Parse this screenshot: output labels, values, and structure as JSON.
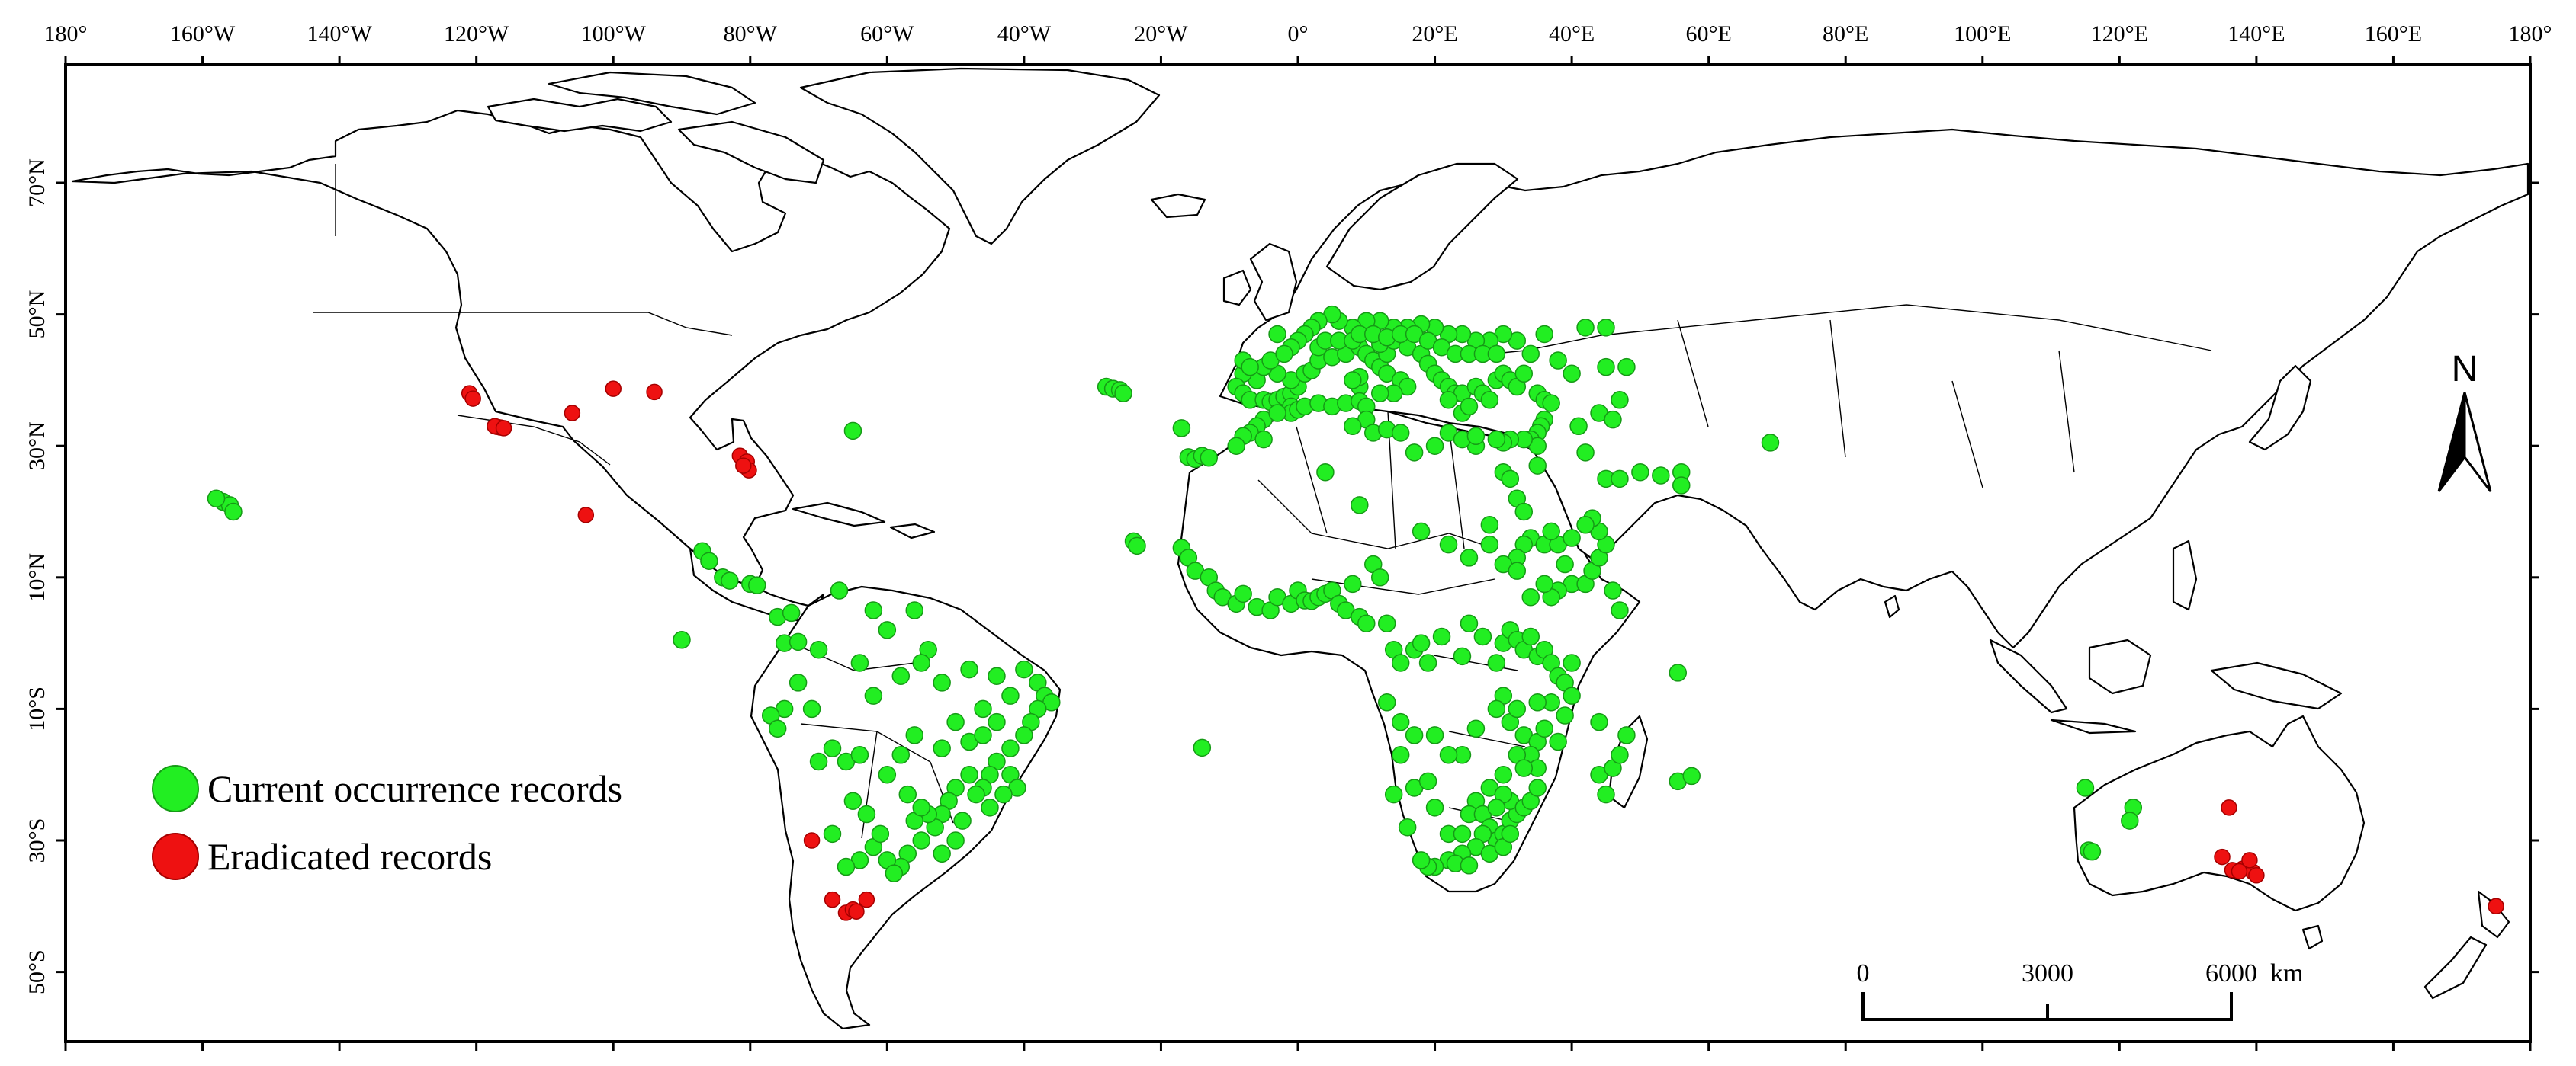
{
  "map": {
    "lon_ticks": [
      "180°",
      "160°W",
      "140°W",
      "120°W",
      "100°W",
      "80°W",
      "60°W",
      "40°W",
      "20°W",
      "0°",
      "20°E",
      "40°E",
      "60°E",
      "80°E",
      "100°E",
      "120°E",
      "140°E",
      "160°E",
      "180°"
    ],
    "lat_ticks": [
      "70°N",
      "50°N",
      "30°N",
      "10°N",
      "10°S",
      "30°S",
      "50°S"
    ],
    "legend": {
      "current_label": "Current occurrence records",
      "eradicated_label": "Eradicated records"
    },
    "scale_bar": {
      "labels": [
        "0",
        "3000",
        "6000"
      ],
      "unit": "km"
    },
    "north_label": "N",
    "colors": {
      "current": "#22ee22",
      "current_stroke": "#169a16",
      "eradicated": "#ee1111",
      "eradicated_stroke": "#a50000",
      "land_stroke": "#000000"
    },
    "current_records": [
      [
        -157,
        21.5
      ],
      [
        -156,
        21
      ],
      [
        -155.5,
        20
      ],
      [
        -158,
        22
      ],
      [
        -65,
        32.3
      ],
      [
        -87,
        14
      ],
      [
        -86,
        12.5
      ],
      [
        -84,
        10
      ],
      [
        -83,
        9.5
      ],
      [
        -80,
        9
      ],
      [
        -79,
        8.8
      ],
      [
        -90,
        0.5
      ],
      [
        -76,
        4
      ],
      [
        -74,
        4.6
      ],
      [
        -75,
        0
      ],
      [
        -73,
        0.2
      ],
      [
        -70,
        -1
      ],
      [
        -67,
        8
      ],
      [
        -62,
        5
      ],
      [
        -60,
        2
      ],
      [
        -56,
        5
      ],
      [
        -54,
        -1
      ],
      [
        -64,
        -3
      ],
      [
        -62,
        -8
      ],
      [
        -58,
        -5
      ],
      [
        -55,
        -3
      ],
      [
        -52,
        -6
      ],
      [
        -48,
        -4
      ],
      [
        -46,
        -10
      ],
      [
        -44,
        -5
      ],
      [
        -42,
        -8
      ],
      [
        -40,
        -4
      ],
      [
        -38,
        -6
      ],
      [
        -37,
        -8
      ],
      [
        -36,
        -9
      ],
      [
        -38,
        -10
      ],
      [
        -39,
        -12
      ],
      [
        -40,
        -14
      ],
      [
        -42,
        -16
      ],
      [
        -44,
        -18
      ],
      [
        -45,
        -20
      ],
      [
        -46,
        -22
      ],
      [
        -47,
        -23
      ],
      [
        -48,
        -20
      ],
      [
        -50,
        -22
      ],
      [
        -51,
        -24
      ],
      [
        -52,
        -26
      ],
      [
        -53,
        -28
      ],
      [
        -54,
        -26
      ],
      [
        -55,
        -30
      ],
      [
        -56,
        -27
      ],
      [
        -57,
        -32
      ],
      [
        -58,
        -34
      ],
      [
        -60,
        -33
      ],
      [
        -62,
        -31
      ],
      [
        -63,
        -26
      ],
      [
        -65,
        -24
      ],
      [
        -66,
        -18
      ],
      [
        -64,
        -17
      ],
      [
        -68,
        -16
      ],
      [
        -70,
        -18
      ],
      [
        -71,
        -10
      ],
      [
        -73,
        -6
      ],
      [
        -75,
        -10
      ],
      [
        -77,
        -11
      ],
      [
        -76,
        -13
      ],
      [
        -60,
        -20
      ],
      [
        -58,
        -17
      ],
      [
        -56,
        -14
      ],
      [
        -52,
        -16
      ],
      [
        -50,
        -12
      ],
      [
        -48,
        -15
      ],
      [
        -46,
        -14
      ],
      [
        -44,
        -12
      ],
      [
        -42,
        -20
      ],
      [
        -41,
        -22
      ],
      [
        -43,
        -23
      ],
      [
        -45,
        -25
      ],
      [
        -49,
        -27
      ],
      [
        -50,
        -30
      ],
      [
        -52,
        -32
      ],
      [
        -59,
        -35
      ],
      [
        -61,
        -29
      ],
      [
        -64,
        -33
      ],
      [
        -66,
        -34
      ],
      [
        -68,
        -29
      ],
      [
        -57,
        -23
      ],
      [
        -55,
        -25
      ],
      [
        -14,
        -15.9
      ],
      [
        -28,
        39
      ],
      [
        -27,
        38.7
      ],
      [
        -26,
        38.5
      ],
      [
        -25.5,
        38
      ],
      [
        -17,
        32.7
      ],
      [
        -16,
        28.3
      ],
      [
        -15,
        28
      ],
      [
        -14,
        28.5
      ],
      [
        -13,
        28.2
      ],
      [
        -24,
        15.5
      ],
      [
        -23.5,
        14.8
      ],
      [
        -17,
        14.5
      ],
      [
        -16,
        13
      ],
      [
        -15,
        11
      ],
      [
        -13,
        10
      ],
      [
        -12,
        8
      ],
      [
        -11,
        7
      ],
      [
        -9,
        6
      ],
      [
        -8,
        7.5
      ],
      [
        -6,
        5.5
      ],
      [
        -4,
        5
      ],
      [
        -3,
        7
      ],
      [
        -1,
        6
      ],
      [
        0,
        8
      ],
      [
        1,
        6.5
      ],
      [
        2,
        6.4
      ],
      [
        3,
        7
      ],
      [
        4,
        7.5
      ],
      [
        5,
        8
      ],
      [
        6,
        6
      ],
      [
        7,
        5
      ],
      [
        8,
        9
      ],
      [
        9,
        4
      ],
      [
        10,
        3
      ],
      [
        11,
        12
      ],
      [
        12,
        10
      ],
      [
        13,
        3
      ],
      [
        14,
        -1
      ],
      [
        15,
        -3
      ],
      [
        17,
        -1
      ],
      [
        18,
        0
      ],
      [
        19,
        -3
      ],
      [
        21,
        1
      ],
      [
        24,
        -2
      ],
      [
        25,
        3
      ],
      [
        27,
        1
      ],
      [
        29,
        -3
      ],
      [
        30,
        0
      ],
      [
        31,
        2
      ],
      [
        32,
        0.5
      ],
      [
        33,
        -1
      ],
      [
        34,
        1
      ],
      [
        35,
        -2
      ],
      [
        36,
        -1
      ],
      [
        37,
        -3
      ],
      [
        38,
        -5
      ],
      [
        39,
        -6
      ],
      [
        40,
        -3
      ],
      [
        30,
        -8
      ],
      [
        29,
        -10
      ],
      [
        31,
        -12
      ],
      [
        33,
        -14
      ],
      [
        35,
        -15
      ],
      [
        34,
        -17
      ],
      [
        32,
        -17
      ],
      [
        30,
        -20
      ],
      [
        28,
        -22
      ],
      [
        26,
        -24
      ],
      [
        25,
        -26
      ],
      [
        27,
        -26
      ],
      [
        28,
        -28
      ],
      [
        29,
        -30
      ],
      [
        30,
        -29
      ],
      [
        31,
        -27
      ],
      [
        32,
        -26
      ],
      [
        31,
        -24
      ],
      [
        30,
        -23
      ],
      [
        29,
        -25
      ],
      [
        27,
        -29
      ],
      [
        26,
        -31
      ],
      [
        24,
        -32
      ],
      [
        22,
        -33
      ],
      [
        20,
        -34
      ],
      [
        19,
        -34
      ],
      [
        18,
        -33
      ],
      [
        23,
        -33.5
      ],
      [
        25,
        -33.8
      ],
      [
        28,
        -32
      ],
      [
        30,
        -31
      ],
      [
        31,
        -29
      ],
      [
        33,
        -25
      ],
      [
        34,
        -24
      ],
      [
        35,
        -22
      ],
      [
        35,
        -19
      ],
      [
        33,
        -19
      ],
      [
        36,
        -13
      ],
      [
        38,
        -15
      ],
      [
        39,
        -11
      ],
      [
        40,
        -8
      ],
      [
        37,
        -9
      ],
      [
        35,
        -9
      ],
      [
        32,
        -10
      ],
      [
        26,
        -13
      ],
      [
        24,
        -17
      ],
      [
        22,
        -17
      ],
      [
        20,
        -14
      ],
      [
        17,
        -14
      ],
      [
        15,
        -12
      ],
      [
        13,
        -9
      ],
      [
        15,
        -17
      ],
      [
        17,
        -22
      ],
      [
        19,
        -21
      ],
      [
        14,
        -23
      ],
      [
        16,
        -28
      ],
      [
        20,
        -25
      ],
      [
        22,
        -29
      ],
      [
        24,
        -29
      ],
      [
        44,
        -12
      ],
      [
        44,
        -20
      ],
      [
        46,
        -19
      ],
      [
        47,
        -17
      ],
      [
        48,
        -14
      ],
      [
        45,
        -23
      ],
      [
        55.5,
        -21
      ],
      [
        57.5,
        -20.2
      ],
      [
        55.5,
        -4.5
      ],
      [
        -6,
        40
      ],
      [
        -8,
        41
      ],
      [
        -9,
        39
      ],
      [
        -8,
        38
      ],
      [
        -7,
        37
      ],
      [
        -5,
        37
      ],
      [
        -4,
        36.7
      ],
      [
        -3,
        37
      ],
      [
        -2,
        37.5
      ],
      [
        -1,
        38
      ],
      [
        0,
        39
      ],
      [
        -1,
        40
      ],
      [
        -3,
        41
      ],
      [
        -5,
        42
      ],
      [
        -4,
        43
      ],
      [
        -8,
        43
      ],
      [
        -7,
        42
      ],
      [
        1,
        41
      ],
      [
        2,
        41.5
      ],
      [
        3,
        43
      ],
      [
        5,
        43.5
      ],
      [
        7,
        44
      ],
      [
        9,
        45
      ],
      [
        10,
        44
      ],
      [
        11,
        43
      ],
      [
        12,
        42
      ],
      [
        13,
        41
      ],
      [
        15,
        40
      ],
      [
        16,
        39
      ],
      [
        14,
        38
      ],
      [
        12,
        38
      ],
      [
        9,
        39
      ],
      [
        9,
        40.5
      ],
      [
        8,
        40
      ],
      [
        13,
        44
      ],
      [
        12,
        45.5
      ],
      [
        14,
        46
      ],
      [
        16,
        45
      ],
      [
        18,
        44
      ],
      [
        19,
        42.5
      ],
      [
        20,
        41
      ],
      [
        21,
        40
      ],
      [
        22,
        39
      ],
      [
        23,
        38
      ],
      [
        24,
        38
      ],
      [
        22,
        37
      ],
      [
        24,
        35
      ],
      [
        25,
        36
      ],
      [
        26,
        39
      ],
      [
        27,
        38
      ],
      [
        28,
        37
      ],
      [
        29,
        40
      ],
      [
        30,
        41
      ],
      [
        31,
        40
      ],
      [
        32,
        39
      ],
      [
        33,
        41
      ],
      [
        35,
        38
      ],
      [
        36,
        37
      ],
      [
        37,
        36.5
      ],
      [
        36,
        34
      ],
      [
        35.5,
        33
      ],
      [
        35,
        32
      ],
      [
        34,
        31
      ],
      [
        35,
        30
      ],
      [
        33,
        31
      ],
      [
        31,
        31
      ],
      [
        30,
        30.5
      ],
      [
        29,
        31
      ],
      [
        26,
        30
      ],
      [
        30,
        26
      ],
      [
        31,
        25
      ],
      [
        32,
        22
      ],
      [
        33,
        20
      ],
      [
        34,
        16
      ],
      [
        33,
        15
      ],
      [
        32,
        13
      ],
      [
        36,
        15
      ],
      [
        38,
        15
      ],
      [
        39,
        12
      ],
      [
        40,
        9
      ],
      [
        38,
        8
      ],
      [
        37,
        7
      ],
      [
        36,
        9
      ],
      [
        34,
        7
      ],
      [
        42,
        9
      ],
      [
        43,
        11
      ],
      [
        44,
        13
      ],
      [
        45,
        15
      ],
      [
        44,
        17
      ],
      [
        43,
        19
      ],
      [
        42,
        18
      ],
      [
        45,
        25
      ],
      [
        47,
        25
      ],
      [
        53,
        25.5
      ],
      [
        56,
        26
      ],
      [
        56,
        24
      ],
      [
        50,
        26
      ],
      [
        42,
        29
      ],
      [
        41,
        33
      ],
      [
        44,
        35
      ],
      [
        46,
        34
      ],
      [
        47,
        37
      ],
      [
        48,
        42
      ],
      [
        45,
        42
      ],
      [
        40,
        41
      ],
      [
        38,
        43
      ],
      [
        42,
        48
      ],
      [
        45,
        48
      ],
      [
        36,
        47
      ],
      [
        34,
        44
      ],
      [
        32,
        46
      ],
      [
        30,
        47
      ],
      [
        28,
        46
      ],
      [
        26,
        46
      ],
      [
        24,
        47
      ],
      [
        22,
        47
      ],
      [
        20,
        48
      ],
      [
        18,
        48.5
      ],
      [
        16,
        48
      ],
      [
        14,
        48
      ],
      [
        12,
        49
      ],
      [
        10,
        49
      ],
      [
        8,
        48
      ],
      [
        6,
        49
      ],
      [
        5,
        50
      ],
      [
        3,
        49
      ],
      [
        2,
        48
      ],
      [
        1,
        47
      ],
      [
        0,
        46
      ],
      [
        -1,
        45
      ],
      [
        -2,
        44
      ],
      [
        -3,
        47
      ],
      [
        3,
        45
      ],
      [
        4,
        46
      ],
      [
        6,
        46
      ],
      [
        8,
        46
      ],
      [
        9,
        47
      ],
      [
        11,
        47
      ],
      [
        13,
        46.5
      ],
      [
        15,
        47
      ],
      [
        17,
        47
      ],
      [
        19,
        46
      ],
      [
        21,
        45
      ],
      [
        23,
        44
      ],
      [
        25,
        44
      ],
      [
        27,
        44
      ],
      [
        29,
        44
      ],
      [
        -1,
        36
      ],
      [
        -1,
        35
      ],
      [
        0,
        35.5
      ],
      [
        1,
        36
      ],
      [
        3,
        36.5
      ],
      [
        5,
        36
      ],
      [
        7,
        36.5
      ],
      [
        9,
        36.8
      ],
      [
        10,
        36
      ],
      [
        10,
        34
      ],
      [
        8,
        33
      ],
      [
        11,
        32
      ],
      [
        13,
        32.5
      ],
      [
        15,
        32
      ],
      [
        17,
        29
      ],
      [
        20,
        30
      ],
      [
        22,
        32
      ],
      [
        24,
        31
      ],
      [
        26,
        31.5
      ],
      [
        -5,
        34
      ],
      [
        -6,
        33
      ],
      [
        -7,
        32
      ],
      [
        -8,
        31.5
      ],
      [
        -9,
        30
      ],
      [
        -5,
        31
      ],
      [
        -3,
        35
      ],
      [
        4,
        26
      ],
      [
        9,
        21
      ],
      [
        18,
        17
      ],
      [
        22,
        15
      ],
      [
        25,
        13
      ],
      [
        28,
        15
      ],
      [
        30,
        12
      ],
      [
        32,
        11
      ],
      [
        28,
        18
      ],
      [
        35,
        27
      ],
      [
        37,
        17
      ],
      [
        40,
        16
      ],
      [
        46,
        8
      ],
      [
        47,
        5
      ],
      [
        69,
        30.5
      ],
      [
        115,
        -22
      ],
      [
        115.5,
        -31.5
      ],
      [
        116,
        -31.7
      ],
      [
        122,
        -25
      ],
      [
        121.5,
        -27
      ]
    ],
    "eradicated_records": [
      [
        -121,
        38
      ],
      [
        -120.5,
        37.2
      ],
      [
        -117,
        32.9
      ],
      [
        -116.5,
        32.8
      ],
      [
        -117.3,
        33
      ],
      [
        -116,
        32.7
      ],
      [
        -106,
        35
      ],
      [
        -100,
        38.7
      ],
      [
        -94,
        38.2
      ],
      [
        -104,
        19.5
      ],
      [
        -81.5,
        28.5
      ],
      [
        -80.5,
        27.6
      ],
      [
        -80.2,
        26.3
      ],
      [
        -81,
        27
      ],
      [
        -71,
        -30
      ],
      [
        -68,
        -39
      ],
      [
        -66,
        -41
      ],
      [
        -65,
        -40.5
      ],
      [
        -63,
        -39
      ],
      [
        -64.5,
        -40.8
      ],
      [
        136,
        -25
      ],
      [
        135,
        -32.5
      ],
      [
        136.5,
        -34.5
      ],
      [
        138,
        -34.3
      ],
      [
        139.5,
        -34.8
      ],
      [
        140,
        -35.3
      ],
      [
        139,
        -33
      ],
      [
        137.5,
        -34.7
      ],
      [
        175,
        -40
      ]
    ]
  }
}
